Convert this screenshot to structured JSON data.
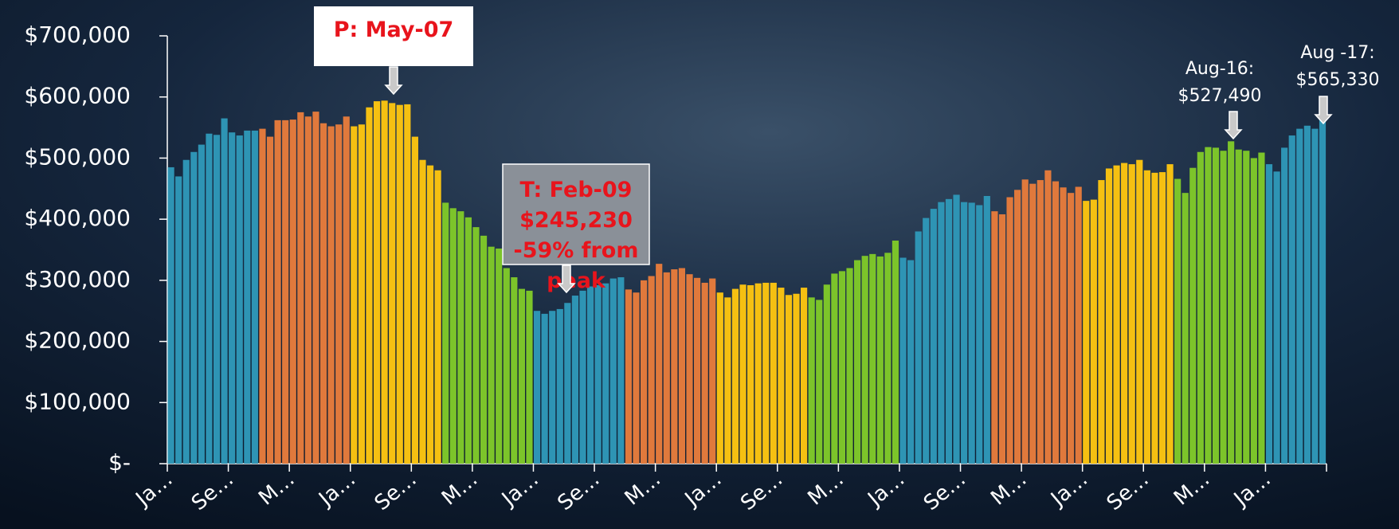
{
  "chart_data": {
    "type": "bar",
    "categories": [
      "Ja…",
      null,
      null,
      null,
      null,
      null,
      null,
      null,
      "Se…",
      null,
      null,
      null,
      null,
      null,
      null,
      null,
      "M…",
      null,
      null,
      null,
      null,
      null,
      null,
      null,
      "Ja…",
      null,
      null,
      null,
      null,
      null,
      null,
      null,
      "Se…",
      null,
      null,
      null,
      null,
      null,
      null,
      null,
      "M…",
      null,
      null,
      null,
      null,
      null,
      null,
      null,
      "Ja…",
      null,
      null,
      null,
      null,
      null,
      null,
      null,
      "Se…",
      null,
      null,
      null,
      null,
      null,
      null,
      null,
      "M…",
      null,
      null,
      null,
      null,
      null,
      null,
      null,
      "Ja…",
      null,
      null,
      null,
      null,
      null,
      null,
      null,
      "Se…",
      null,
      null,
      null,
      null,
      null,
      null,
      null,
      "M…",
      null,
      null,
      null,
      null,
      null,
      null,
      null,
      "Ja…",
      null,
      null,
      null,
      null,
      null,
      null,
      null,
      "Se…",
      null,
      null,
      null,
      null,
      null,
      null,
      null,
      "M…",
      null,
      null,
      null,
      null,
      null,
      null,
      null,
      "Ja…",
      null,
      null,
      null,
      null,
      null,
      null,
      null,
      "Se…",
      null,
      null,
      null,
      null,
      null,
      null,
      null,
      "M…",
      null,
      null,
      null,
      null,
      null,
      null,
      null,
      "Ja…",
      null,
      null,
      null,
      null,
      null,
      null,
      null
    ],
    "values": [
      485000,
      470000,
      497000,
      510000,
      522000,
      540000,
      538000,
      565000,
      542000,
      537000,
      545000,
      545000,
      548000,
      535000,
      562000,
      562000,
      563000,
      575000,
      568000,
      576000,
      557000,
      552000,
      555000,
      568000,
      552000,
      555000,
      583000,
      593000,
      594000,
      590000,
      587000,
      588000,
      535000,
      497000,
      488000,
      480000,
      427000,
      418000,
      413000,
      403000,
      387000,
      373000,
      355000,
      352000,
      320000,
      305000,
      286000,
      283000,
      250000,
      245230,
      250000,
      253000,
      263000,
      275000,
      283000,
      290000,
      292000,
      295000,
      303000,
      305000,
      285000,
      280000,
      300000,
      307000,
      327000,
      313000,
      318000,
      320000,
      310000,
      304000,
      296000,
      303000,
      280000,
      272000,
      286000,
      293000,
      292000,
      295000,
      296000,
      296000,
      288000,
      276000,
      278000,
      288000,
      272000,
      268000,
      293000,
      311000,
      315000,
      320000,
      333000,
      340000,
      343000,
      339000,
      345000,
      365000,
      337000,
      333000,
      380000,
      402000,
      417000,
      428000,
      433000,
      440000,
      428000,
      427000,
      423000,
      438000,
      413000,
      408000,
      436000,
      448000,
      465000,
      458000,
      464000,
      480000,
      462000,
      452000,
      443000,
      453000,
      430000,
      432000,
      464000,
      483000,
      488000,
      492000,
      490000,
      497000,
      480000,
      476000,
      477000,
      490000,
      466000,
      443000,
      484000,
      510000,
      518000,
      517000,
      512000,
      527490,
      514000,
      512000,
      500000,
      509000,
      490000,
      478000,
      517000,
      537000,
      548000,
      553000,
      548000,
      565330
    ],
    "colors": [
      "#2e94b4",
      "#e0793c",
      "#f5c012",
      "#7cc42a"
    ],
    "ylim": [
      0,
      700000
    ],
    "yticks": [
      {
        "value": 0,
        "label": "$-"
      },
      {
        "value": 100000,
        "label": "$100,000"
      },
      {
        "value": 200000,
        "label": "$200,000"
      },
      {
        "value": 300000,
        "label": "$300,000"
      },
      {
        "value": 400000,
        "label": "$400,000"
      },
      {
        "value": 500000,
        "label": "$500,000"
      },
      {
        "value": 600000,
        "label": "$600,000"
      },
      {
        "value": 700000,
        "label": "$700,000"
      }
    ],
    "annotations": {
      "peak": [
        "P: May-07"
      ],
      "trough": [
        "T: Feb-09",
        "$245,230",
        "-59% from",
        "peak"
      ],
      "aug16": [
        "Aug-16:",
        "$527,490"
      ],
      "aug17": [
        "Aug -17:",
        "$565,330"
      ]
    }
  }
}
